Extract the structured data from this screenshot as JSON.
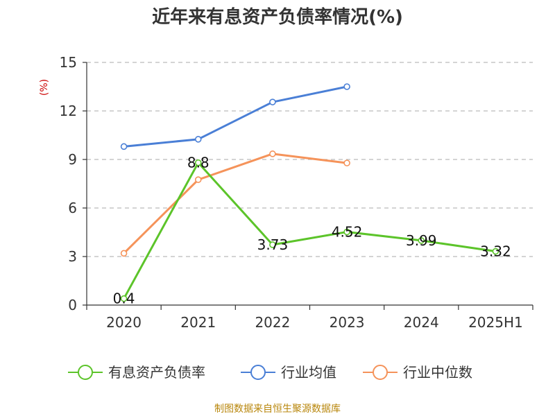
{
  "chart_data": {
    "type": "line",
    "title": "近年来有息资产负债率情况(%)",
    "unit_label": "(%)",
    "categories": [
      "2020",
      "2021",
      "2022",
      "2023",
      "2024",
      "2025H1"
    ],
    "ylim": [
      0,
      15
    ],
    "yticks": [
      "0",
      "3",
      "6",
      "9",
      "12",
      "15"
    ],
    "grid": true,
    "legend_position": "bottom",
    "series": [
      {
        "name": "有息资产负债率",
        "color": "#5cc42a",
        "values": [
          0.4,
          8.8,
          3.73,
          4.52,
          3.99,
          3.32
        ],
        "labels": [
          "0.4",
          "8.8",
          "3.73",
          "4.52",
          "3.99",
          "3.32"
        ]
      },
      {
        "name": "行业均值",
        "color": "#4a7fd6",
        "values": [
          9.8,
          10.25,
          12.55,
          13.5,
          null,
          null
        ]
      },
      {
        "name": "行业中位数",
        "color": "#f5935a",
        "values": [
          3.2,
          7.75,
          9.35,
          8.78,
          null,
          null
        ]
      }
    ]
  },
  "source_text": "制图数据来自恒生聚源数据库"
}
